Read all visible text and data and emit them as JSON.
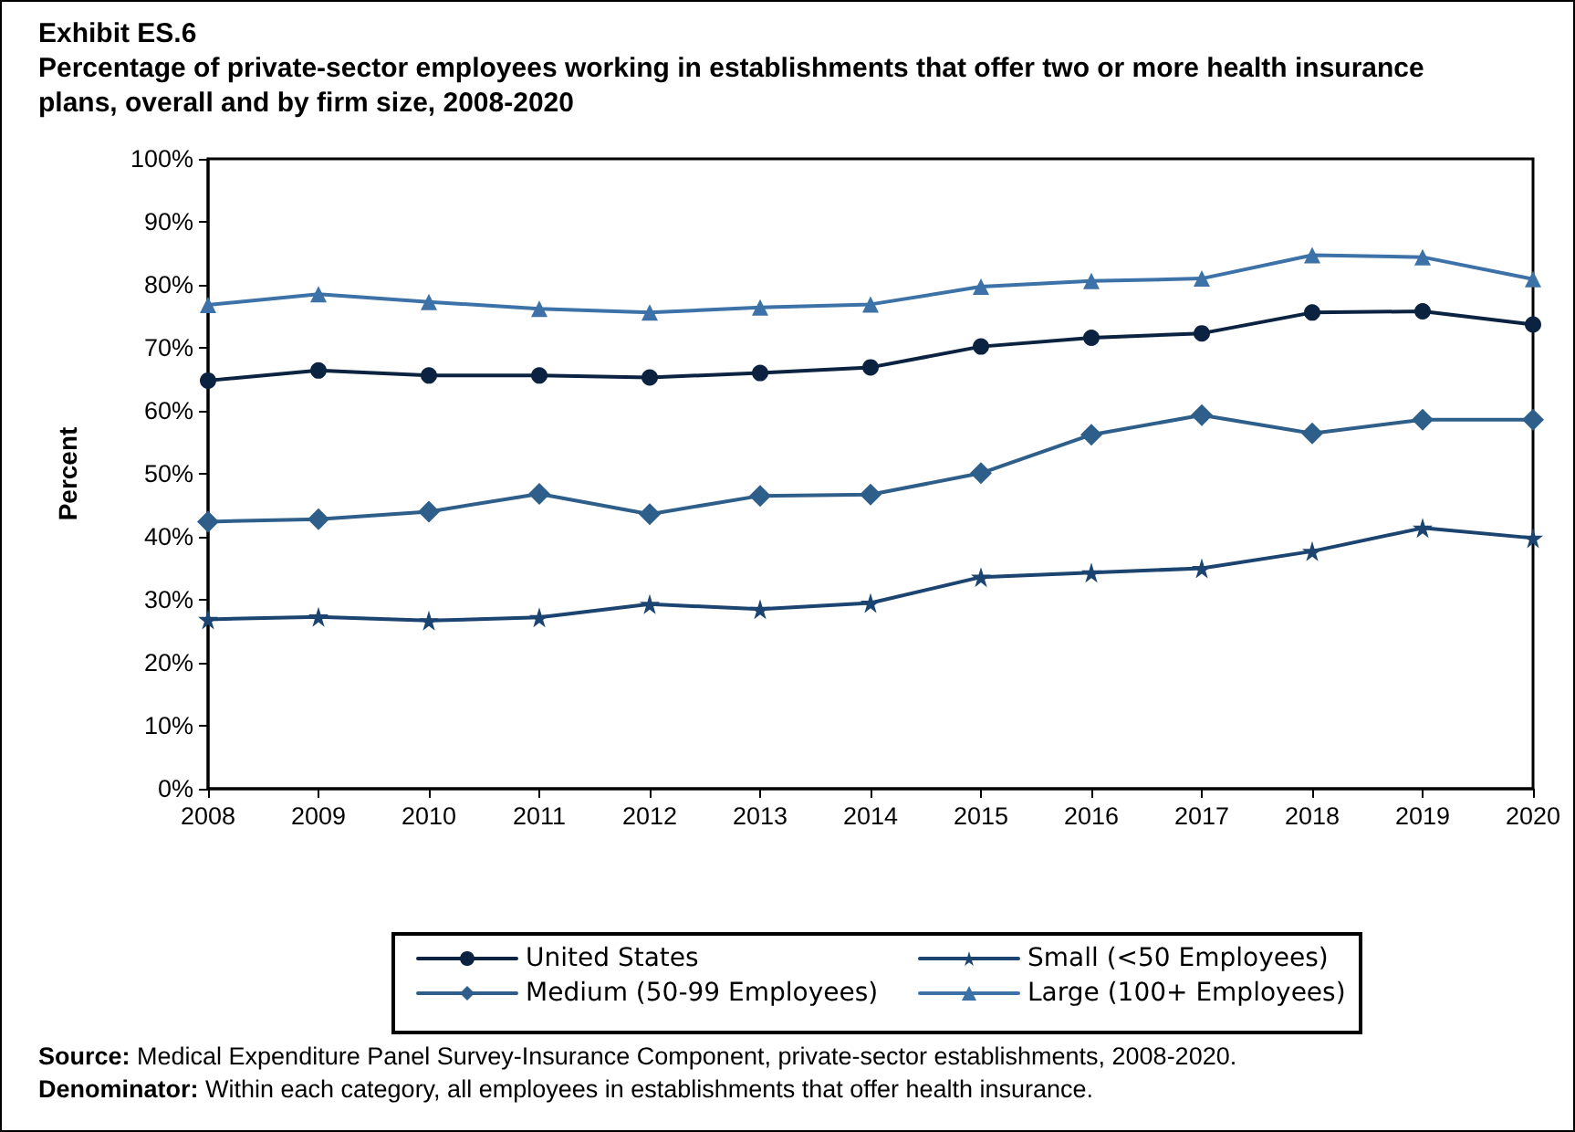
{
  "chart_data": {
    "type": "line",
    "title": "Exhibit ES.6",
    "subtitle": "Percentage of private-sector employees working in establishments that offer two or more health insurance plans, overall and by firm size, 2008-2020",
    "ylabel": "Percent",
    "categories": [
      "2008",
      "2009",
      "2010",
      "2011",
      "2012",
      "2013",
      "2014",
      "2015",
      "2016",
      "2017",
      "2018",
      "2019",
      "2020"
    ],
    "series": [
      {
        "name": "United States",
        "color": "#0b2340",
        "marker": "circle",
        "values": [
          64.8,
          66.4,
          65.6,
          65.6,
          65.3,
          66.0,
          66.9,
          70.2,
          71.6,
          72.3,
          75.6,
          75.8,
          73.7
        ]
      },
      {
        "name": "Small (<50 Employees)",
        "color": "#1b4470",
        "marker": "star",
        "values": [
          26.9,
          27.3,
          26.7,
          27.2,
          29.3,
          28.5,
          29.5,
          33.6,
          34.3,
          35.0,
          37.7,
          41.4,
          39.8
        ]
      },
      {
        "name": "Medium (50-99 Employees)",
        "color": "#2e5f8a",
        "marker": "diamond",
        "values": [
          42.4,
          42.8,
          44.0,
          46.8,
          43.6,
          46.5,
          46.7,
          50.1,
          56.2,
          59.3,
          56.4,
          58.6,
          58.6
        ]
      },
      {
        "name": "Large (100+ Employees)",
        "color": "#3d72a8",
        "marker": "triangle",
        "values": [
          76.8,
          78.5,
          77.3,
          76.2,
          75.6,
          76.4,
          76.9,
          79.7,
          80.6,
          81.0,
          84.7,
          84.4,
          80.9
        ]
      }
    ],
    "ylim": [
      0,
      100
    ],
    "yticks": [
      {
        "value": 0,
        "label": "0%"
      },
      {
        "value": 10,
        "label": "10%"
      },
      {
        "value": 20,
        "label": "20%"
      },
      {
        "value": 30,
        "label": "30%"
      },
      {
        "value": 40,
        "label": "40%"
      },
      {
        "value": 50,
        "label": "50%"
      },
      {
        "value": 60,
        "label": "60%"
      },
      {
        "value": 70,
        "label": "70%"
      },
      {
        "value": 80,
        "label": "80%"
      },
      {
        "value": 90,
        "label": "90%"
      },
      {
        "value": 100,
        "label": "100%"
      }
    ],
    "grid": false,
    "legend": "bottom",
    "line_style": "solid",
    "annotations": [
      "Source: Medical Expenditure Panel Survey-Insurance Component, private-sector establishments, 2008-2020.",
      "Denominator: Within each category, all employees in establishments that offer health insurance."
    ]
  }
}
